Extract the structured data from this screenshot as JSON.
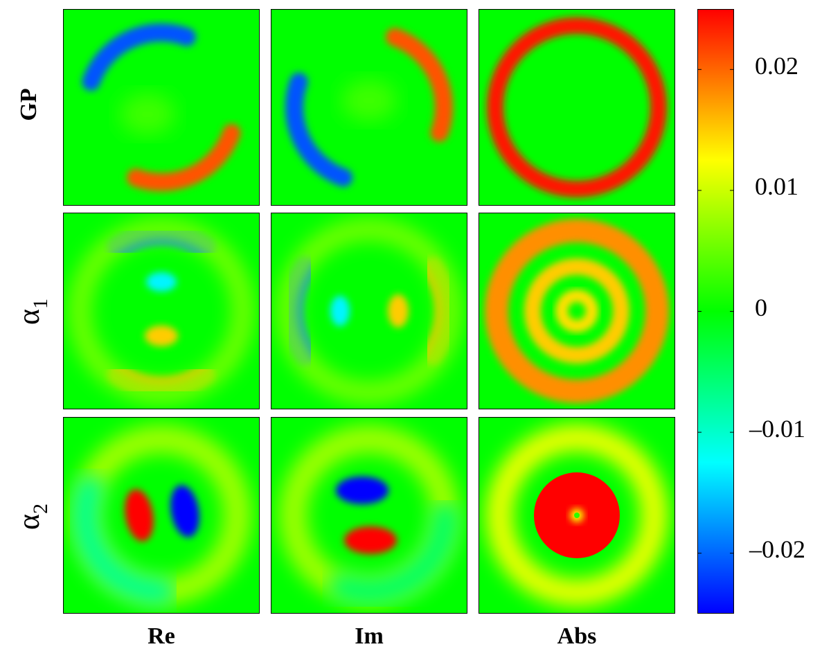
{
  "chart_data": {
    "type": "heatmap",
    "rows": [
      {
        "label": "GP"
      },
      {
        "label": "α",
        "subscript": "1"
      },
      {
        "label": "α",
        "subscript": "2"
      }
    ],
    "columns": [
      "Re",
      "Im",
      "Abs"
    ],
    "colorbar": {
      "min": -0.025,
      "max": 0.025,
      "ticks": [
        0.02,
        0.01,
        0,
        -0.01,
        -0.02
      ],
      "tick_labels": [
        "0.02",
        "0.01",
        "0",
        "–0.01",
        "–0.02"
      ],
      "colormap": [
        "#0000ff",
        "#00ffff",
        "#00ff00",
        "#ffff00",
        "#ff0000"
      ]
    },
    "panels": [
      [
        {
          "desc": "two opposing crescents, negative upper-left, positive lower-right",
          "min": -0.022,
          "max": 0.022
        },
        {
          "desc": "two opposing crescents, positive upper-right, negative lower-left",
          "min": -0.022,
          "max": 0.022
        },
        {
          "desc": "single ring",
          "min": 0,
          "max": 0.024
        }
      ],
      [
        {
          "desc": "horizontal arcs and inner lobes, negative top, positive bottom",
          "min": -0.02,
          "max": 0.017
        },
        {
          "desc": "vertical arcs and inner lobes, negative left, positive right",
          "min": -0.02,
          "max": 0.017
        },
        {
          "desc": "concentric rings",
          "min": 0,
          "max": 0.018
        }
      ],
      [
        {
          "desc": "dipole: positive left lobe, negative right lobe, faint outer ring",
          "min": -0.025,
          "max": 0.025
        },
        {
          "desc": "dipole: negative top lobe, positive bottom lobe, faint outer ring",
          "min": -0.025,
          "max": 0.025
        },
        {
          "desc": "saturated disc with small central dip and faint outer ring",
          "min": 0,
          "max": 0.025
        }
      ]
    ]
  }
}
